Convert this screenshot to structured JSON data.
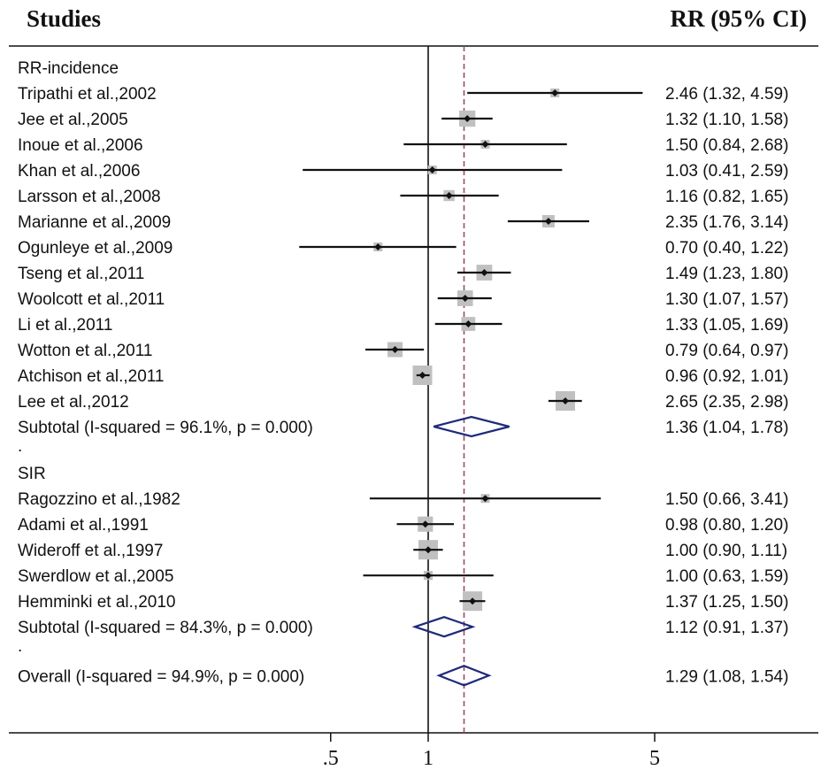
{
  "header": {
    "studies": "Studies",
    "effect": "RR (95% CI)"
  },
  "colors": {
    "ci_line": "#111111",
    "box": "#c0c0c0",
    "diamond": "#1f2a7a",
    "null_line": "#111111",
    "overall_line": "#9b4a6a",
    "axis": "#111111"
  },
  "chart_data": {
    "type": "forest",
    "effect_measure": "RR",
    "scale": "log",
    "x_ticks": [
      {
        "value": 0.5,
        "label": ".5"
      },
      {
        "value": 1,
        "label": "1"
      },
      {
        "value": 5,
        "label": "5"
      }
    ],
    "null_value": 1,
    "overall_estimate": 1.29,
    "rows": [
      {
        "kind": "group",
        "label": "RR-incidence"
      },
      {
        "kind": "study",
        "label": "Tripathi et al.,2002",
        "rr": 2.46,
        "lo": 1.32,
        "hi": 4.59,
        "text": "2.46 (1.32, 4.59)"
      },
      {
        "kind": "study",
        "label": "Jee et al.,2005",
        "rr": 1.32,
        "lo": 1.1,
        "hi": 1.58,
        "text": "1.32 (1.10, 1.58)"
      },
      {
        "kind": "study",
        "label": "Inoue et al.,2006",
        "rr": 1.5,
        "lo": 0.84,
        "hi": 2.68,
        "text": "1.50 (0.84, 2.68)"
      },
      {
        "kind": "study",
        "label": "Khan et al.,2006",
        "rr": 1.03,
        "lo": 0.41,
        "hi": 2.59,
        "text": "1.03 (0.41, 2.59)"
      },
      {
        "kind": "study",
        "label": "Larsson et al.,2008",
        "rr": 1.16,
        "lo": 0.82,
        "hi": 1.65,
        "text": "1.16 (0.82, 1.65)"
      },
      {
        "kind": "study",
        "label": "Marianne et al.,2009",
        "rr": 2.35,
        "lo": 1.76,
        "hi": 3.14,
        "text": "2.35 (1.76, 3.14)"
      },
      {
        "kind": "study",
        "label": "Ogunleye et al.,2009",
        "rr": 0.7,
        "lo": 0.4,
        "hi": 1.22,
        "text": "0.70 (0.40, 1.22)"
      },
      {
        "kind": "study",
        "label": "Tseng et al.,2011",
        "rr": 1.49,
        "lo": 1.23,
        "hi": 1.8,
        "text": "1.49 (1.23, 1.80)"
      },
      {
        "kind": "study",
        "label": "Woolcott et al.,2011",
        "rr": 1.3,
        "lo": 1.07,
        "hi": 1.57,
        "text": "1.30 (1.07, 1.57)"
      },
      {
        "kind": "study",
        "label": "Li et al.,2011",
        "rr": 1.33,
        "lo": 1.05,
        "hi": 1.69,
        "text": "1.33 (1.05, 1.69)"
      },
      {
        "kind": "study",
        "label": "Wotton et al.,2011",
        "rr": 0.79,
        "lo": 0.64,
        "hi": 0.97,
        "text": "0.79 (0.64, 0.97)"
      },
      {
        "kind": "study",
        "label": "Atchison et al.,2011",
        "rr": 0.96,
        "lo": 0.92,
        "hi": 1.01,
        "text": "0.96 (0.92, 1.01)"
      },
      {
        "kind": "study",
        "label": "Lee et al.,2012",
        "rr": 2.65,
        "lo": 2.35,
        "hi": 2.98,
        "text": "2.65 (2.35, 2.98)"
      },
      {
        "kind": "subtotal",
        "label": "Subtotal  (I-squared = 96.1%, p = 0.000)",
        "rr": 1.36,
        "lo": 1.04,
        "hi": 1.78,
        "text": "1.36 (1.04, 1.78)"
      },
      {
        "kind": "spacer",
        "label": "."
      },
      {
        "kind": "group",
        "label": "SIR"
      },
      {
        "kind": "study",
        "label": "Ragozzino et al.,1982",
        "rr": 1.5,
        "lo": 0.66,
        "hi": 3.41,
        "text": "1.50 (0.66, 3.41)"
      },
      {
        "kind": "study",
        "label": "Adami et al.,1991",
        "rr": 0.98,
        "lo": 0.8,
        "hi": 1.2,
        "text": "0.98 (0.80, 1.20)"
      },
      {
        "kind": "study",
        "label": "Wideroff et al.,1997",
        "rr": 1.0,
        "lo": 0.9,
        "hi": 1.11,
        "text": "1.00 (0.90, 1.11)"
      },
      {
        "kind": "study",
        "label": "Swerdlow et al.,2005",
        "rr": 1.0,
        "lo": 0.63,
        "hi": 1.59,
        "text": "1.00 (0.63, 1.59)"
      },
      {
        "kind": "study",
        "label": "Hemminki et al.,2010",
        "rr": 1.37,
        "lo": 1.25,
        "hi": 1.5,
        "text": "1.37 (1.25, 1.50)"
      },
      {
        "kind": "subtotal",
        "label": "Subtotal  (I-squared = 84.3%, p = 0.000)",
        "rr": 1.12,
        "lo": 0.91,
        "hi": 1.37,
        "text": "1.12 (0.91, 1.37)"
      },
      {
        "kind": "spacer",
        "label": "."
      },
      {
        "kind": "overall",
        "label": "Overall  (I-squared = 94.9%, p = 0.000)",
        "rr": 1.29,
        "lo": 1.08,
        "hi": 1.54,
        "text": "1.29 (1.08, 1.54)"
      }
    ]
  }
}
